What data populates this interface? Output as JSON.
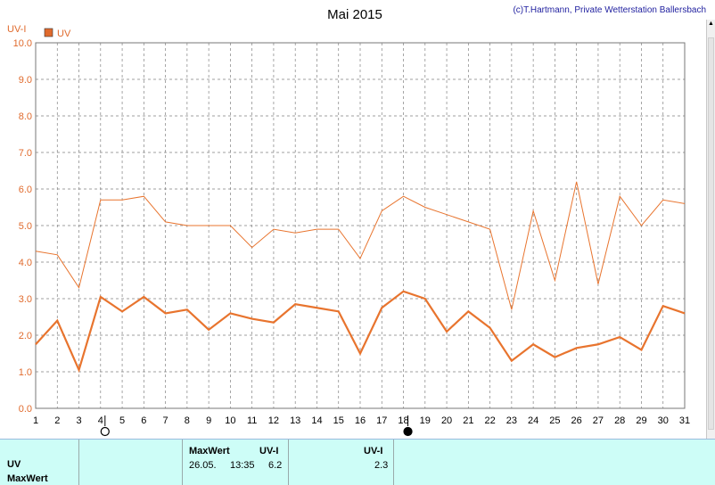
{
  "header": {
    "title": "Mai 2015",
    "credit": "(c)T.Hartmann, Private Wetterstation Ballersbach",
    "y_unit": "UV-I"
  },
  "legend": {
    "label": "UV",
    "color": "#e06a2c"
  },
  "colors": {
    "series": "#e8742e",
    "grid": "#808080",
    "stats_bg": "#cdfdf7"
  },
  "chart_data": {
    "type": "line",
    "title": "Mai 2015",
    "ylabel": "UV-I",
    "xlabel": "",
    "ylim": [
      0,
      10
    ],
    "yticks": [
      "0.0",
      "1.0",
      "2.0",
      "3.0",
      "4.0",
      "5.0",
      "6.0",
      "7.0",
      "8.0",
      "9.0",
      "10.0"
    ],
    "x": [
      1,
      2,
      3,
      4,
      5,
      6,
      7,
      8,
      9,
      10,
      11,
      12,
      13,
      14,
      15,
      16,
      17,
      18,
      19,
      20,
      21,
      22,
      23,
      24,
      25,
      26,
      27,
      28,
      29,
      30,
      31
    ],
    "grid": true,
    "series": [
      {
        "name": "UV",
        "role": "daily max",
        "values": [
          4.3,
          4.2,
          3.3,
          5.7,
          5.7,
          5.8,
          5.1,
          5.0,
          5.0,
          5.0,
          4.4,
          4.9,
          4.8,
          4.9,
          4.9,
          4.1,
          5.4,
          5.8,
          5.5,
          5.3,
          5.1,
          4.9,
          2.7,
          5.4,
          3.5,
          6.2,
          3.4,
          5.8,
          5.0,
          5.7,
          5.6
        ]
      },
      {
        "name": "UV",
        "role": "daily mean",
        "values": [
          1.75,
          2.4,
          1.05,
          3.05,
          2.65,
          3.05,
          2.6,
          2.7,
          2.15,
          2.6,
          2.45,
          2.35,
          2.85,
          2.75,
          2.65,
          1.5,
          2.75,
          3.2,
          3.0,
          2.1,
          2.65,
          2.2,
          1.3,
          1.75,
          1.4,
          1.65,
          1.75,
          1.95,
          1.6,
          2.8,
          2.6
        ]
      }
    ],
    "moon_markers": [
      {
        "day": 4,
        "phase": "full-moon"
      },
      {
        "day": 18,
        "phase": "new-moon"
      }
    ]
  },
  "stats": {
    "row_uv": "UV",
    "row_maxwert": "MaxWert",
    "max_header": "MaxWert",
    "unit_header": "UV-I",
    "max_date": "26.05.",
    "max_time": "13:35",
    "max_value": "6.2",
    "mean_unit_header": "UV-I",
    "mean_value": "2.3"
  }
}
